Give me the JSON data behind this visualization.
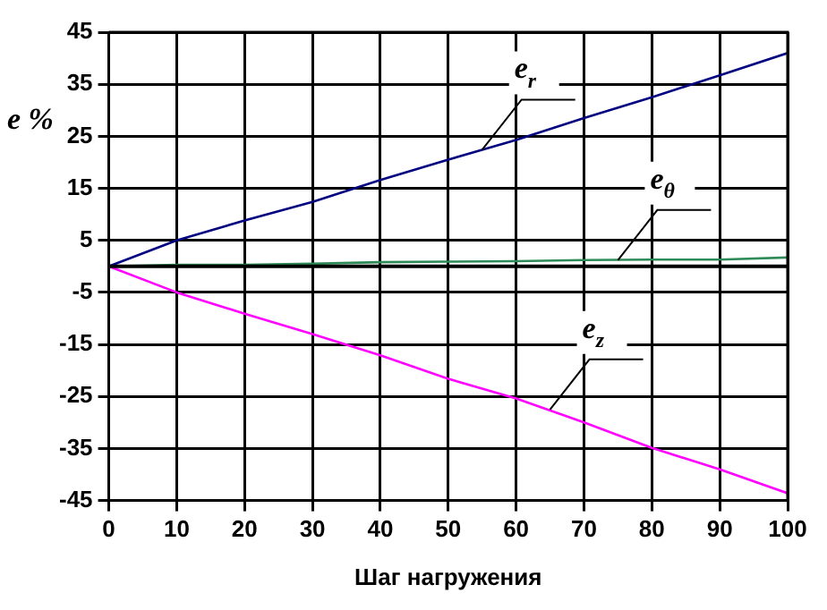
{
  "chart_data": {
    "type": "line",
    "xlabel": "Шаг нагружения",
    "ylabel": "e %",
    "x": [
      0,
      10,
      20,
      30,
      40,
      50,
      60,
      70,
      80,
      90,
      100
    ],
    "series": [
      {
        "color": "#000080",
        "values": [
          0,
          5,
          8.8,
          12.4,
          16.6,
          20.5,
          24.3,
          28.5,
          32.5,
          36.7,
          41
        ]
      },
      {
        "color": "#2e8b57",
        "values": [
          0,
          0.3,
          0.3,
          0.5,
          0.8,
          0.9,
          1,
          1.2,
          1.3,
          1.3,
          1.7
        ]
      },
      {
        "color": "#ff00ff",
        "values": [
          0,
          -5,
          -9.1,
          -13,
          -17.1,
          -21.6,
          -25.4,
          -30,
          -34.9,
          -39,
          -43.6
        ]
      }
    ],
    "xlim": [
      0,
      100
    ],
    "xticks": [
      0,
      10,
      20,
      30,
      40,
      50,
      60,
      70,
      80,
      90,
      100
    ],
    "ylim": [
      -45,
      45
    ],
    "yticks": [
      -45,
      -35,
      -25,
      -15,
      -5,
      5,
      15,
      25,
      35,
      45
    ],
    "ref_lines": [
      {
        "axis": "y",
        "value": 0,
        "color": "#000000"
      }
    ],
    "annotations": [
      {
        "text": "e$_{r}$",
        "x": 55,
        "y": 22.4
      },
      {
        "text": "e$_{θ}$",
        "x": 75,
        "y": 1.2
      },
      {
        "text": "e$_{z}$",
        "x": 65,
        "y": -27.5
      }
    ],
    "grid": true,
    "legend": false,
    "marker": "none",
    "line_style": "solid"
  }
}
